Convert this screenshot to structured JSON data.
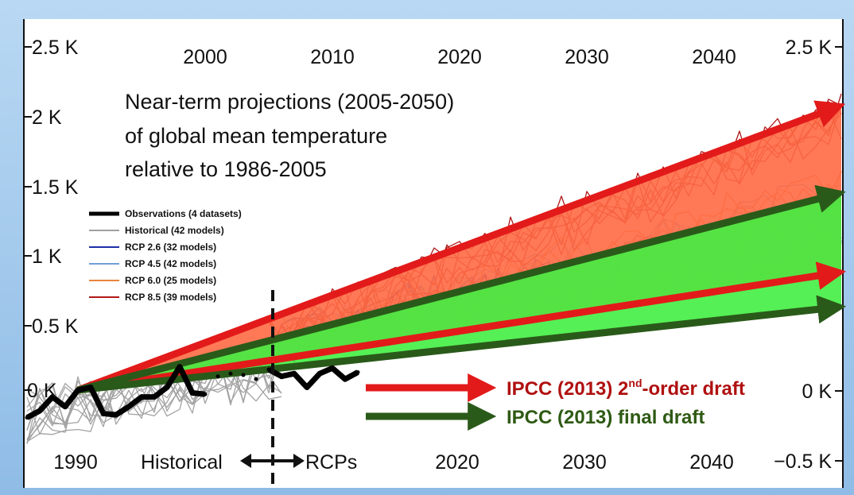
{
  "chart_data": {
    "type": "line",
    "title_lines": [
      "Near-term projections (2005-2050)",
      "of global mean temperature",
      "relative to 1986-2005"
    ],
    "x_ticks_top": [
      "2000",
      "2010",
      "2020",
      "2030",
      "2040"
    ],
    "x_ticks_bottom": [
      "1990",
      "2020",
      "2030",
      "2040"
    ],
    "y_ticks_left": [
      "2.5 K",
      "2 K",
      "1.5 K",
      "1 K",
      "0.5 K",
      "0 K"
    ],
    "y_ticks_right": [
      "2.5 K",
      "0 K",
      "−0.5 K"
    ],
    "xlim": [
      1986,
      2050
    ],
    "ylim": [
      -0.6,
      2.6
    ],
    "legend": [
      {
        "label": "Observations (4 datasets)",
        "color": "#000000"
      },
      {
        "label": "Historical (42 models)",
        "color": "#a0a0a0"
      },
      {
        "label": "RCP 2.6 (32 models)",
        "color": "#1c2fa8"
      },
      {
        "label": "RCP 4.5 (42 models)",
        "color": "#6fa0d8"
      },
      {
        "label": "RCP 6.0 (25 models)",
        "color": "#e8843a"
      },
      {
        "label": "RCP 8.5 (39 models)",
        "color": "#b01818"
      }
    ],
    "divider_labels": {
      "left": "Historical",
      "right": "RCPs"
    },
    "divider_year": 2005.5,
    "observations": {
      "x": [
        1986,
        1987,
        1988,
        1989,
        1990,
        1991,
        1992,
        1993,
        1994,
        1995,
        1996,
        1997,
        1998,
        1999,
        2000,
        2001,
        2002,
        2003,
        2004,
        2005,
        2006,
        2007,
        2008,
        2009,
        2010,
        2011,
        2012
      ],
      "y": [
        -0.2,
        -0.15,
        -0.05,
        -0.12,
        0.0,
        0.02,
        -0.17,
        -0.18,
        -0.12,
        -0.05,
        -0.05,
        0.02,
        0.17,
        -0.02,
        -0.03,
        0.1,
        0.12,
        0.11,
        0.08,
        0.15,
        0.1,
        0.12,
        0.02,
        0.12,
        0.16,
        0.08,
        0.13
      ]
    },
    "ipcc_ranges": {
      "second_order_draft": {
        "color": "#e31a1a",
        "fill": "#ff6a45",
        "start": [
          1990,
          0.0
        ],
        "upper_end": [
          2050,
          2.05
        ],
        "lower_end": [
          2050,
          0.85
        ]
      },
      "final_draft": {
        "color": "#2a5a1a",
        "fill": "#42ee42",
        "start": [
          1990,
          0.0
        ],
        "upper_end": [
          2050,
          1.42
        ],
        "lower_end": [
          2050,
          0.6
        ]
      }
    },
    "annotations": {
      "second_order": {
        "text_before": "IPCC (2013) 2",
        "superscript": "nd",
        "text_after": "-order draft",
        "color": "#b01010"
      },
      "final": {
        "text": "IPCC (2013) final draft",
        "color": "#2e5a14"
      }
    }
  }
}
